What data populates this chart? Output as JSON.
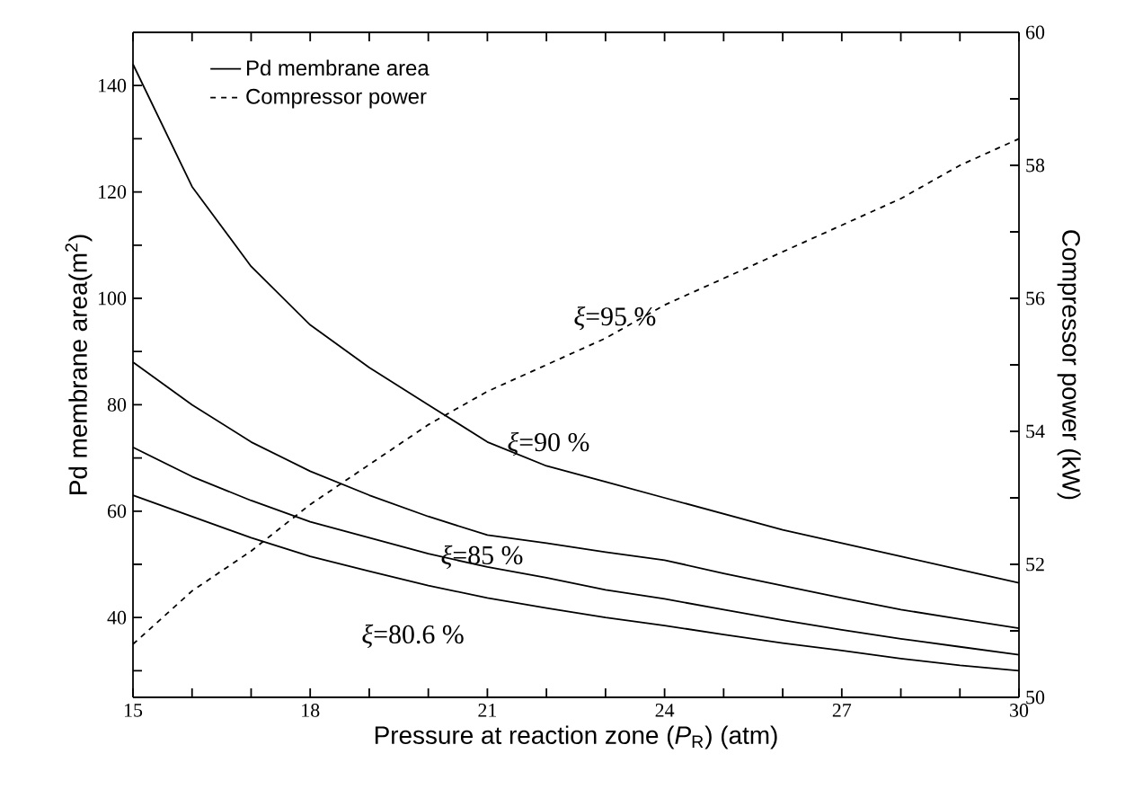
{
  "chart_data": {
    "type": "line",
    "xlabel": "Pressure at reaction zone (*P*$_{R}$) (atm)",
    "ylabel": "Pd membrane area(m$^{2}$)",
    "y2label": "Compressor power (kW)",
    "x": [
      15,
      16,
      17,
      18,
      19,
      20,
      21,
      22,
      23,
      24,
      25,
      26,
      27,
      28,
      29,
      30
    ],
    "series": [
      {
        "name": "Pd membrane area",
        "color": "#000000",
        "line_style": "solid",
        "values": [
          144,
          121,
          106,
          95,
          87,
          80,
          73,
          68.5,
          65.5,
          62.5,
          59.5,
          56.5,
          54,
          51.5,
          49,
          46.5
        ]
      },
      {
        "color": "#000000",
        "line_style": "solid",
        "values": [
          88,
          80,
          73,
          67.5,
          63,
          59,
          55.5,
          54,
          52.3,
          50.8,
          48.3,
          46,
          43.7,
          41.5,
          39.7,
          38
        ]
      },
      {
        "color": "#000000",
        "line_style": "solid",
        "values": [
          72,
          66.5,
          62,
          58,
          55,
          52,
          49.5,
          47.5,
          45.2,
          43.5,
          41.5,
          39.5,
          37.7,
          36,
          34.5,
          33
        ]
      },
      {
        "color": "#000000",
        "line_style": "solid",
        "values": [
          63,
          59,
          55,
          51.5,
          48.7,
          46,
          43.7,
          41.8,
          40,
          38.5,
          36.8,
          35.2,
          33.8,
          32.3,
          31,
          30
        ]
      },
      {
        "name": "Compressor power",
        "color": "#000000",
        "line_style": "dashed",
        "axis": "y2",
        "values": [
          50.8,
          51.6,
          52.2,
          52.9,
          53.5,
          54.1,
          54.6,
          55.0,
          55.4,
          55.9,
          56.3,
          56.7,
          57.1,
          57.5,
          58.0,
          58.4
        ]
      }
    ],
    "xlim": [
      15,
      30
    ],
    "xticks": [
      15,
      {
        "value": 16,
        "label": null
      },
      {
        "value": 17,
        "label": null
      },
      18,
      {
        "value": 19,
        "label": null
      },
      {
        "value": 20,
        "label": null
      },
      21,
      {
        "value": 22,
        "label": null
      },
      {
        "value": 23,
        "label": null
      },
      24,
      {
        "value": 25,
        "label": null
      },
      {
        "value": 26,
        "label": null
      },
      27,
      {
        "value": 28,
        "label": null
      },
      {
        "value": 29,
        "label": null
      },
      30
    ],
    "ylim": [
      25,
      150
    ],
    "yticks": [
      {
        "value": 30,
        "label": null
      },
      40,
      {
        "value": 50,
        "label": null
      },
      60,
      {
        "value": 70,
        "label": null
      },
      80,
      {
        "value": 90,
        "label": null
      },
      100,
      {
        "value": 110,
        "label": null
      },
      120,
      {
        "value": 130,
        "label": null
      },
      140
    ],
    "y2lim": [
      50,
      60
    ],
    "y2ticks": [
      50,
      {
        "value": 51,
        "label": null
      },
      52,
      {
        "value": 53,
        "label": null
      },
      54,
      {
        "value": 55,
        "label": null
      },
      56,
      {
        "value": 57,
        "label": null
      },
      58,
      {
        "value": 59,
        "label": null
      },
      60
    ],
    "legend": "top left",
    "grid": false,
    "marker": "none",
    "annotations": [
      "*ξ*=95 %",
      "*ξ*=90 %",
      "*ξ*=85 %",
      "*ξ*=80.6 %"
    ]
  }
}
